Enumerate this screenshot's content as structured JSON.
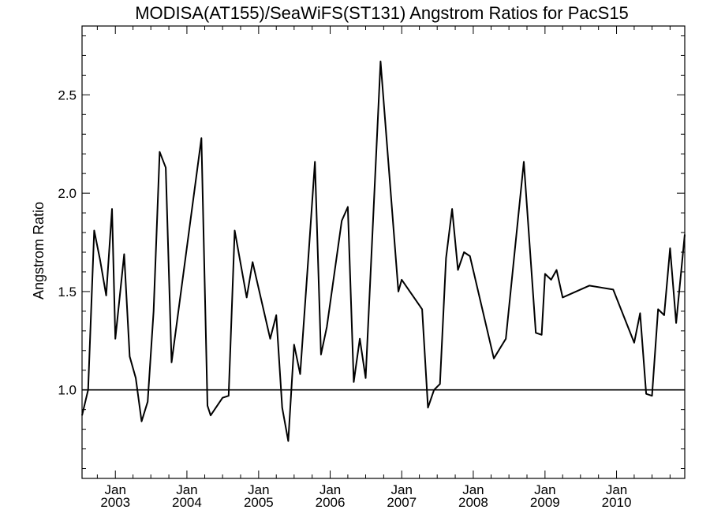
{
  "chart_data": {
    "type": "line",
    "title": "MODISA(AT155)/SeaWiFS(ST131)  Angstrom Ratios for PacS15",
    "ylabel": "Angstrom Ratio",
    "xlabel": "",
    "xlim": [
      "2002-07-15",
      "2010-12-15"
    ],
    "ylim": [
      0.55,
      2.85
    ],
    "yticks": [
      {
        "value": 1.0,
        "label": "1.0"
      },
      {
        "value": 1.5,
        "label": "1.5"
      },
      {
        "value": 2.0,
        "label": "2.0"
      },
      {
        "value": 2.5,
        "label": "2.5"
      }
    ],
    "xticks": [
      {
        "date": "2003-01-01",
        "month": "Jan",
        "year": "2003"
      },
      {
        "date": "2004-01-01",
        "month": "Jan",
        "year": "2004"
      },
      {
        "date": "2005-01-01",
        "month": "Jan",
        "year": "2005"
      },
      {
        "date": "2006-01-01",
        "month": "Jan",
        "year": "2006"
      },
      {
        "date": "2007-01-01",
        "month": "Jan",
        "year": "2007"
      },
      {
        "date": "2008-01-01",
        "month": "Jan",
        "year": "2008"
      },
      {
        "date": "2009-01-01",
        "month": "Jan",
        "year": "2009"
      },
      {
        "date": "2010-01-01",
        "month": "Jan",
        "year": "2010"
      }
    ],
    "reference_line": 1.0,
    "grid": false,
    "series": [
      {
        "points": [
          [
            "2002-07-15",
            0.87
          ],
          [
            "2002-08-15",
            1.0
          ],
          [
            "2002-09-15",
            1.81
          ],
          [
            "2002-10-15",
            1.66
          ],
          [
            "2002-11-15",
            1.48
          ],
          [
            "2002-12-15",
            1.92
          ],
          [
            "2003-01-01",
            1.26
          ],
          [
            "2003-02-15",
            1.69
          ],
          [
            "2003-03-15",
            1.17
          ],
          [
            "2003-04-15",
            1.06
          ],
          [
            "2003-05-15",
            0.84
          ],
          [
            "2003-06-15",
            0.94
          ],
          [
            "2003-07-15",
            1.4
          ],
          [
            "2003-08-15",
            2.21
          ],
          [
            "2003-09-15",
            2.13
          ],
          [
            "2003-10-15",
            1.14
          ],
          [
            "2004-03-15",
            2.28
          ],
          [
            "2004-04-15",
            0.92
          ],
          [
            "2004-05-01",
            0.87
          ],
          [
            "2004-07-01",
            0.96
          ],
          [
            "2004-08-01",
            0.97
          ],
          [
            "2004-09-01",
            1.81
          ],
          [
            "2004-11-01",
            1.47
          ],
          [
            "2004-12-01",
            1.65
          ],
          [
            "2005-03-01",
            1.26
          ],
          [
            "2005-04-01",
            1.38
          ],
          [
            "2005-05-01",
            0.91
          ],
          [
            "2005-06-01",
            0.74
          ],
          [
            "2005-07-01",
            1.23
          ],
          [
            "2005-08-01",
            1.08
          ],
          [
            "2005-09-15",
            1.72
          ],
          [
            "2005-10-15",
            2.16
          ],
          [
            "2005-11-15",
            1.18
          ],
          [
            "2005-12-15",
            1.32
          ],
          [
            "2006-03-01",
            1.86
          ],
          [
            "2006-04-01",
            1.93
          ],
          [
            "2006-05-01",
            1.04
          ],
          [
            "2006-06-01",
            1.26
          ],
          [
            "2006-07-01",
            1.06
          ],
          [
            "2006-09-15",
            2.67
          ],
          [
            "2006-12-15",
            1.5
          ],
          [
            "2007-01-01",
            1.56
          ],
          [
            "2007-04-15",
            1.41
          ],
          [
            "2007-05-15",
            0.91
          ],
          [
            "2007-06-15",
            1.0
          ],
          [
            "2007-07-15",
            1.03
          ],
          [
            "2007-08-15",
            1.67
          ],
          [
            "2007-09-15",
            1.92
          ],
          [
            "2007-10-15",
            1.61
          ],
          [
            "2007-11-15",
            1.7
          ],
          [
            "2007-12-15",
            1.68
          ],
          [
            "2008-04-15",
            1.16
          ],
          [
            "2008-06-15",
            1.26
          ],
          [
            "2008-09-15",
            2.16
          ],
          [
            "2008-11-15",
            1.29
          ],
          [
            "2008-12-15",
            1.28
          ],
          [
            "2009-01-01",
            1.59
          ],
          [
            "2009-02-01",
            1.56
          ],
          [
            "2009-03-01",
            1.61
          ],
          [
            "2009-04-01",
            1.47
          ],
          [
            "2009-08-15",
            1.53
          ],
          [
            "2009-12-15",
            1.51
          ],
          [
            "2010-04-01",
            1.24
          ],
          [
            "2010-05-01",
            1.39
          ],
          [
            "2010-06-01",
            0.98
          ],
          [
            "2010-07-01",
            0.97
          ],
          [
            "2010-08-01",
            1.41
          ],
          [
            "2010-09-01",
            1.38
          ],
          [
            "2010-10-01",
            1.72
          ],
          [
            "2010-11-01",
            1.34
          ],
          [
            "2010-12-15",
            1.79
          ]
        ]
      }
    ]
  }
}
